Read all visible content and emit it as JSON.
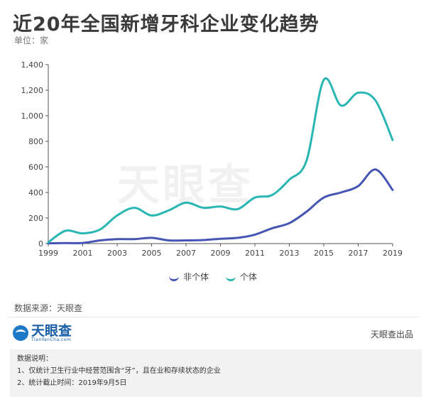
{
  "title": "近20年全国新增牙科企业变化趋势",
  "unit": "单位：家",
  "watermark": "天眼查",
  "chart_data": {
    "type": "line",
    "x": [
      1999,
      2000,
      2001,
      2002,
      2003,
      2004,
      2005,
      2006,
      2007,
      2008,
      2009,
      2010,
      2011,
      2012,
      2013,
      2014,
      2015,
      2016,
      2017,
      2018,
      2019
    ],
    "x_ticks": [
      "1999",
      "2001",
      "2003",
      "2005",
      "2007",
      "2009",
      "2011",
      "2013",
      "2015",
      "2017",
      "2019"
    ],
    "y_ticks": [
      "0",
      "200",
      "400",
      "600",
      "800",
      "1,000",
      "1,200",
      "1,400"
    ],
    "ylim": [
      0,
      1400
    ],
    "series": [
      {
        "name": "非个体",
        "color": "#4455b3",
        "values": [
          2,
          4,
          5,
          25,
          35,
          35,
          45,
          25,
          25,
          28,
          38,
          45,
          70,
          120,
          160,
          250,
          360,
          400,
          450,
          580,
          420
        ]
      },
      {
        "name": "个体",
        "color": "#2ab7b4",
        "values": [
          10,
          100,
          80,
          110,
          220,
          280,
          220,
          260,
          320,
          280,
          290,
          270,
          360,
          380,
          500,
          650,
          1280,
          1080,
          1180,
          1120,
          810
        ]
      }
    ],
    "legend_position": "bottom-center"
  },
  "legend": [
    {
      "label": "非个体",
      "color": "#4455b3"
    },
    {
      "label": "个体",
      "color": "#2ab7b4"
    }
  ],
  "source": "数据来源：天眼查",
  "logo": {
    "text": "天眼查",
    "sub": "TianYanCha.com"
  },
  "credit": "天眼查出品",
  "notes": {
    "heading": "数据说明：",
    "line1": "1、仅统计卫生行业中经营范围含“牙”，且在业和存续状态的企业",
    "line2": "2、统计截止时间：2019年9月5日"
  }
}
